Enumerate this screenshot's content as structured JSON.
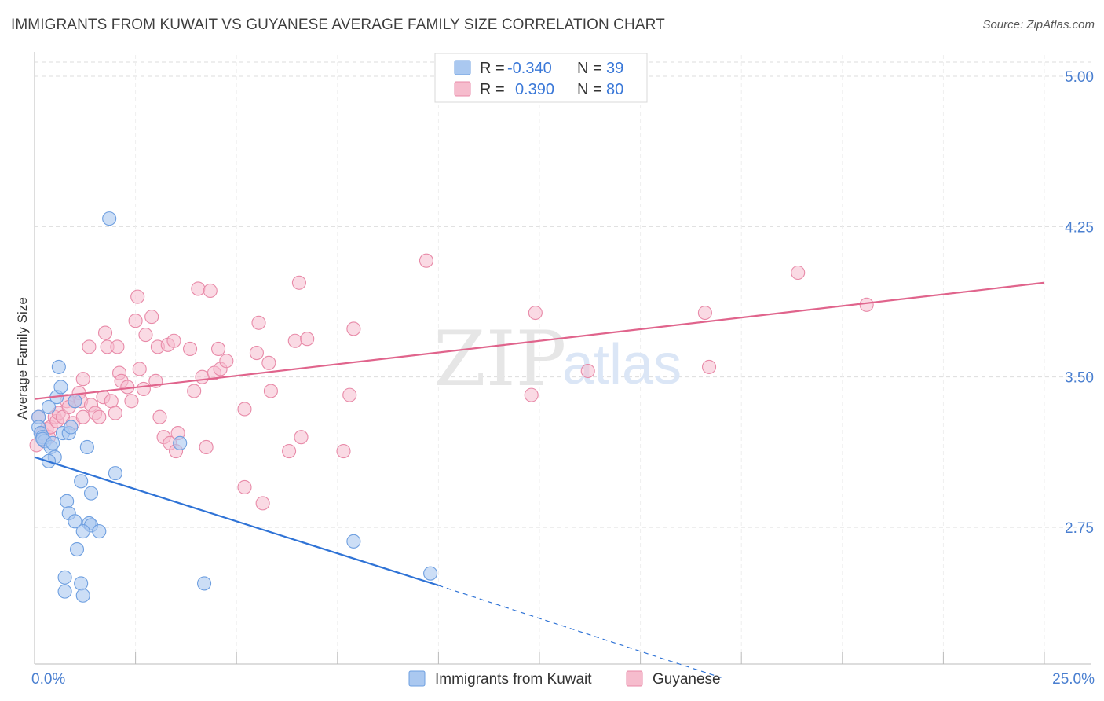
{
  "title": "IMMIGRANTS FROM KUWAIT VS GUYANESE AVERAGE FAMILY SIZE CORRELATION CHART",
  "source": "Source: ZipAtlas.com",
  "watermark": {
    "zip": "ZIP",
    "atlas": "atlas"
  },
  "colors": {
    "blue_fill": "#aac8f0",
    "blue_stroke": "#6e9fe0",
    "blue_line": "#2f73d6",
    "pink_fill": "#f6bccd",
    "pink_stroke": "#e88aa8",
    "pink_line": "#e0648c",
    "grid": "#dddddd",
    "tick_text": "#4a7fd0"
  },
  "legend": {
    "rows": [
      {
        "r_label": "R =",
        "r_value": "-0.340",
        "n_label": "N =",
        "n_value": "39"
      },
      {
        "r_label": "R =",
        "r_value": "0.390",
        "n_label": "N =",
        "n_value": "80"
      }
    ]
  },
  "bottom_legend": [
    "Immigrants from Kuwait",
    "Guyanese"
  ],
  "chart_data": {
    "type": "scatter",
    "title": "IMMIGRANTS FROM KUWAIT VS GUYANESE AVERAGE FAMILY SIZE CORRELATION CHART",
    "xlabel": "",
    "ylabel": "Average Family Size",
    "xlim": [
      0,
      25
    ],
    "ylim": [
      2.0,
      5.1
    ],
    "x_tick_labels": [
      "0.0%",
      "25.0%"
    ],
    "x_tick_values": [
      0,
      25
    ],
    "y_ticks": [
      2.75,
      3.5,
      4.25,
      5.0
    ],
    "y_tick_labels": [
      "2.75",
      "3.50",
      "4.25",
      "5.00"
    ],
    "grid": true,
    "series": [
      {
        "name": "Immigrants from Kuwait",
        "r": -0.34,
        "n": 39,
        "trend": {
          "x0": 0,
          "y0": 3.1,
          "x1": 10,
          "y1": 2.46,
          "dash_to_x": 17.0,
          "dash_to_y": 2.0
        },
        "points": [
          [
            0.1,
            3.3
          ],
          [
            0.1,
            3.25
          ],
          [
            0.15,
            3.22
          ],
          [
            0.2,
            3.2
          ],
          [
            0.25,
            3.18
          ],
          [
            0.2,
            3.19
          ],
          [
            0.35,
            3.35
          ],
          [
            0.4,
            3.15
          ],
          [
            0.45,
            3.17
          ],
          [
            0.5,
            3.1
          ],
          [
            0.35,
            3.08
          ],
          [
            0.55,
            3.4
          ],
          [
            0.6,
            3.55
          ],
          [
            0.65,
            3.45
          ],
          [
            0.7,
            3.22
          ],
          [
            0.85,
            3.22
          ],
          [
            0.9,
            3.25
          ],
          [
            1.0,
            3.38
          ],
          [
            1.3,
            3.15
          ],
          [
            1.15,
            2.98
          ],
          [
            1.4,
            2.92
          ],
          [
            0.8,
            2.88
          ],
          [
            0.85,
            2.82
          ],
          [
            1.0,
            2.78
          ],
          [
            1.35,
            2.77
          ],
          [
            1.4,
            2.76
          ],
          [
            1.2,
            2.73
          ],
          [
            1.6,
            2.73
          ],
          [
            1.05,
            2.64
          ],
          [
            0.75,
            2.5
          ],
          [
            1.15,
            2.47
          ],
          [
            0.75,
            2.43
          ],
          [
            1.2,
            2.41
          ],
          [
            1.85,
            4.29
          ],
          [
            2.0,
            3.02
          ],
          [
            3.6,
            3.17
          ],
          [
            4.2,
            2.47
          ],
          [
            7.9,
            2.68
          ],
          [
            9.8,
            2.52
          ]
        ]
      },
      {
        "name": "Guyanese",
        "r": 0.39,
        "n": 80,
        "trend": {
          "x0": 0,
          "y0": 3.39,
          "x1": 25,
          "y1": 3.97
        },
        "points": [
          [
            0.1,
            3.3
          ],
          [
            0.2,
            3.22
          ],
          [
            0.3,
            3.24
          ],
          [
            0.35,
            3.2
          ],
          [
            0.4,
            3.25
          ],
          [
            0.5,
            3.3
          ],
          [
            0.55,
            3.28
          ],
          [
            0.6,
            3.32
          ],
          [
            0.7,
            3.3
          ],
          [
            0.8,
            3.38
          ],
          [
            0.85,
            3.35
          ],
          [
            0.95,
            3.27
          ],
          [
            1.0,
            3.38
          ],
          [
            1.1,
            3.42
          ],
          [
            1.15,
            3.38
          ],
          [
            1.2,
            3.3
          ],
          [
            1.2,
            3.49
          ],
          [
            1.35,
            3.65
          ],
          [
            1.4,
            3.36
          ],
          [
            1.5,
            3.32
          ],
          [
            1.6,
            3.3
          ],
          [
            1.7,
            3.4
          ],
          [
            1.75,
            3.72
          ],
          [
            1.8,
            3.65
          ],
          [
            1.9,
            3.38
          ],
          [
            2.0,
            3.32
          ],
          [
            2.05,
            3.65
          ],
          [
            2.1,
            3.52
          ],
          [
            2.15,
            3.48
          ],
          [
            2.3,
            3.45
          ],
          [
            2.4,
            3.38
          ],
          [
            2.5,
            3.78
          ],
          [
            2.55,
            3.9
          ],
          [
            2.6,
            3.54
          ],
          [
            2.7,
            3.44
          ],
          [
            2.75,
            3.71
          ],
          [
            2.9,
            3.8
          ],
          [
            3.0,
            3.48
          ],
          [
            3.05,
            3.65
          ],
          [
            3.1,
            3.3
          ],
          [
            3.2,
            3.2
          ],
          [
            3.3,
            3.66
          ],
          [
            3.35,
            3.17
          ],
          [
            3.45,
            3.68
          ],
          [
            3.5,
            3.13
          ],
          [
            3.55,
            3.22
          ],
          [
            3.85,
            3.64
          ],
          [
            3.95,
            3.43
          ],
          [
            4.05,
            3.94
          ],
          [
            4.15,
            3.5
          ],
          [
            4.25,
            3.15
          ],
          [
            4.35,
            3.93
          ],
          [
            4.45,
            3.52
          ],
          [
            4.55,
            3.64
          ],
          [
            4.6,
            3.54
          ],
          [
            4.75,
            3.58
          ],
          [
            5.2,
            3.34
          ],
          [
            5.2,
            2.95
          ],
          [
            5.5,
            3.62
          ],
          [
            5.55,
            3.77
          ],
          [
            5.65,
            2.87
          ],
          [
            5.8,
            3.57
          ],
          [
            5.85,
            3.43
          ],
          [
            6.3,
            3.13
          ],
          [
            6.45,
            3.68
          ],
          [
            6.55,
            3.97
          ],
          [
            6.6,
            3.2
          ],
          [
            6.75,
            3.69
          ],
          [
            7.65,
            3.13
          ],
          [
            7.8,
            3.41
          ],
          [
            7.9,
            3.74
          ],
          [
            9.7,
            4.08
          ],
          [
            12.4,
            3.82
          ],
          [
            12.3,
            3.41
          ],
          [
            13.7,
            3.53
          ],
          [
            16.6,
            3.82
          ],
          [
            16.7,
            3.55
          ],
          [
            18.9,
            4.02
          ],
          [
            20.6,
            3.86
          ],
          [
            0.05,
            3.16
          ]
        ]
      }
    ]
  }
}
